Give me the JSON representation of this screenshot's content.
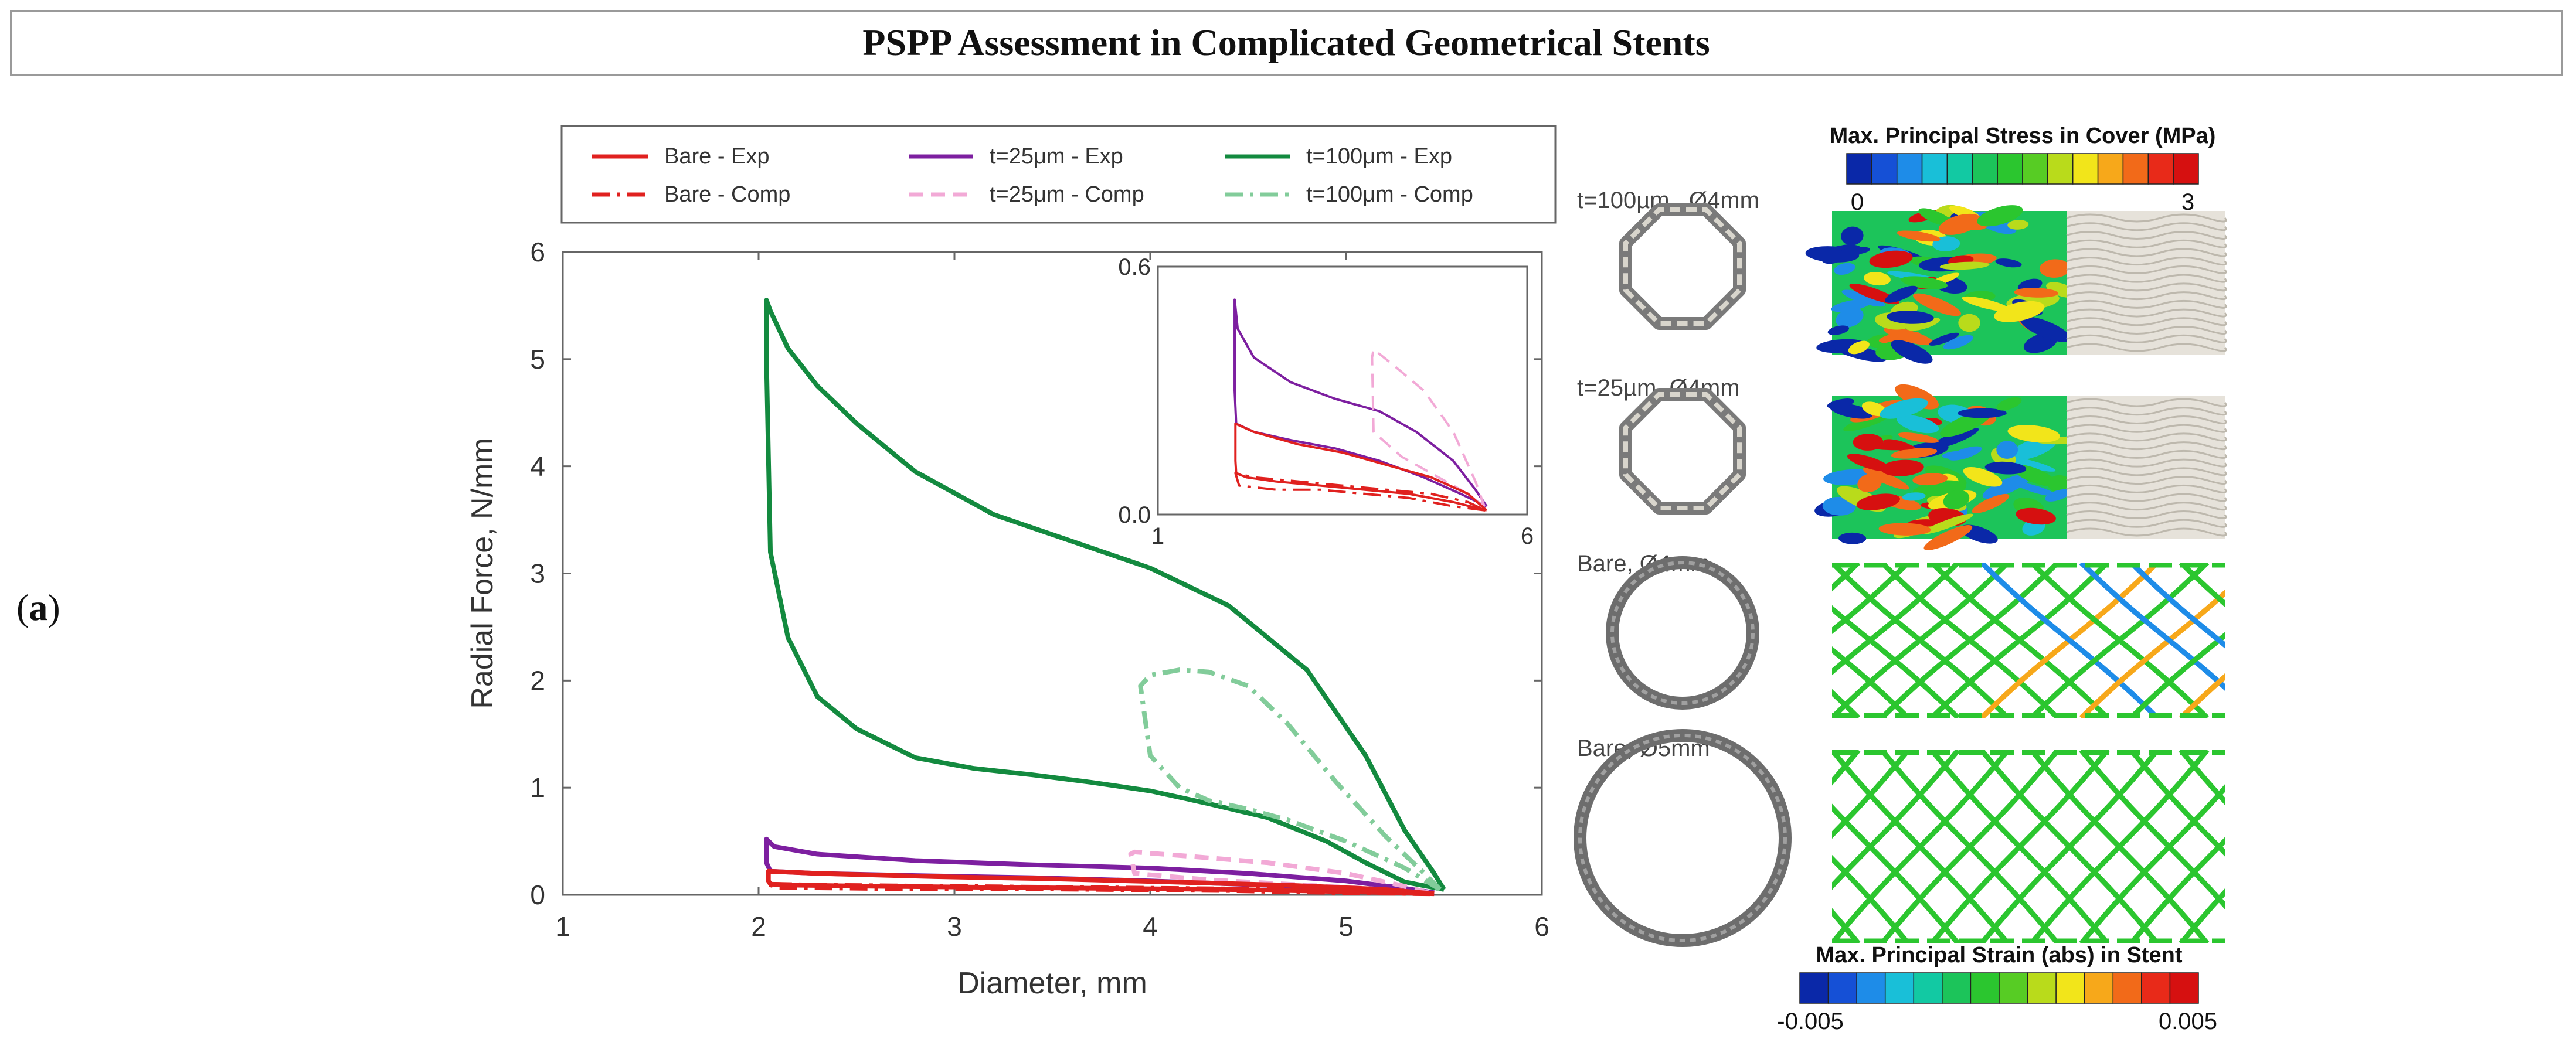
{
  "header": {
    "title": "PSPP Assessment in Complicated Geometrical Stents"
  },
  "panel": {
    "open": "(",
    "letter": "a",
    "close": ")"
  },
  "colors": {
    "bare": "#e0211f",
    "t25": "#7d1fa0",
    "t25_comp": "#f2a9d6",
    "t100": "#138a3f",
    "t100_comp": "#82cc9a",
    "stent_gray": "#7a7a7a",
    "cover": "#e6e2da"
  },
  "legend": {
    "items": [
      {
        "label": "Bare - Exp",
        "color": "#e0211f",
        "style": "solid"
      },
      {
        "label": "t=25μm - Exp",
        "color": "#7d1fa0",
        "style": "solid"
      },
      {
        "label": "t=100μm - Exp",
        "color": "#138a3f",
        "style": "solid"
      },
      {
        "label": "Bare - Comp",
        "color": "#e0211f",
        "style": "dashdot"
      },
      {
        "label": "t=25μm - Comp",
        "color": "#f2a9d6",
        "style": "dashed"
      },
      {
        "label": "t=100μm - Comp",
        "color": "#82cc9a",
        "style": "dashdot"
      }
    ]
  },
  "chart_data": {
    "type": "line",
    "xlabel": "Diameter, mm",
    "ylabel": "Radial Force, N/mm",
    "xlim": [
      1,
      6
    ],
    "ylim": [
      0,
      6
    ],
    "xticks": [
      "1",
      "2",
      "3",
      "4",
      "5",
      "6"
    ],
    "yticks": [
      "0",
      "1",
      "2",
      "3",
      "4",
      "5",
      "6"
    ],
    "series": [
      {
        "name": "t=100μm - Exp",
        "x": [
          5.5,
          5.3,
          5.1,
          4.9,
          4.6,
          4.3,
          4.0,
          3.7,
          3.4,
          3.1,
          2.8,
          2.5,
          2.3,
          2.15,
          2.06,
          2.04,
          2.04,
          2.06,
          2.15,
          2.3,
          2.5,
          2.8,
          3.2,
          3.6,
          4.0,
          4.4,
          4.8,
          5.1,
          5.3,
          5.45,
          5.5
        ],
        "y": [
          0.05,
          0.12,
          0.3,
          0.5,
          0.72,
          0.85,
          0.97,
          1.05,
          1.12,
          1.18,
          1.28,
          1.55,
          1.85,
          2.4,
          3.2,
          5.0,
          5.55,
          5.45,
          5.1,
          4.75,
          4.4,
          3.95,
          3.55,
          3.3,
          3.05,
          2.7,
          2.1,
          1.3,
          0.6,
          0.2,
          0.05
        ]
      },
      {
        "name": "t=100μm - Comp",
        "x": [
          5.48,
          5.3,
          5.0,
          4.7,
          4.5,
          4.3,
          4.15,
          4.0,
          3.95,
          4.0,
          4.15,
          4.3,
          4.5,
          4.7,
          4.95,
          5.2,
          5.4,
          5.48
        ],
        "y": [
          0.05,
          0.25,
          0.5,
          0.7,
          0.8,
          0.88,
          1.0,
          1.3,
          1.95,
          2.05,
          2.1,
          2.08,
          1.95,
          1.6,
          1.05,
          0.55,
          0.2,
          0.05
        ]
      },
      {
        "name": "t=25μm - Exp",
        "x": [
          5.45,
          5.1,
          4.6,
          4.0,
          3.4,
          2.8,
          2.3,
          2.06,
          2.04,
          2.04,
          2.08,
          2.3,
          2.8,
          3.4,
          4.0,
          4.5,
          5.0,
          5.3,
          5.45
        ],
        "y": [
          0.02,
          0.05,
          0.09,
          0.13,
          0.16,
          0.18,
          0.2,
          0.22,
          0.3,
          0.52,
          0.45,
          0.38,
          0.32,
          0.28,
          0.25,
          0.2,
          0.13,
          0.06,
          0.02
        ]
      },
      {
        "name": "t=25μm - Comp",
        "x": [
          5.42,
          5.1,
          4.7,
          4.3,
          3.92,
          3.9,
          3.92,
          4.2,
          4.6,
          5.0,
          5.3,
          5.42
        ],
        "y": [
          0.02,
          0.06,
          0.1,
          0.14,
          0.2,
          0.38,
          0.4,
          0.36,
          0.3,
          0.2,
          0.08,
          0.02
        ]
      },
      {
        "name": "Bare - Exp",
        "x": [
          5.45,
          5.0,
          4.4,
          3.8,
          3.2,
          2.6,
          2.2,
          2.06,
          2.05,
          2.05,
          2.3,
          2.9,
          3.5,
          4.1,
          4.7,
          5.2,
          5.45
        ],
        "y": [
          0.01,
          0.03,
          0.05,
          0.06,
          0.07,
          0.08,
          0.09,
          0.1,
          0.13,
          0.22,
          0.2,
          0.17,
          0.15,
          0.12,
          0.09,
          0.05,
          0.01
        ]
      },
      {
        "name": "Bare - Comp",
        "x": [
          5.43,
          5.0,
          4.4,
          3.8,
          3.2,
          2.6,
          2.1,
          2.05,
          2.3,
          2.9,
          3.5,
          4.1,
          4.7,
          5.2,
          5.43
        ],
        "y": [
          0.01,
          0.02,
          0.04,
          0.05,
          0.06,
          0.06,
          0.07,
          0.1,
          0.09,
          0.08,
          0.07,
          0.06,
          0.05,
          0.03,
          0.01
        ]
      }
    ],
    "inset": {
      "xlim": [
        1,
        6
      ],
      "ylim": [
        0,
        0.6
      ],
      "xticks": [
        "1",
        "6"
      ],
      "yticks": [
        "0.0",
        "0.6"
      ],
      "series_names": [
        "t=25μm - Exp",
        "t=25μm - Comp",
        "Bare - Exp",
        "Bare - Comp"
      ]
    }
  },
  "right_panel": {
    "stress_bar": {
      "title": "Max. Principal Stress in Cover (MPa)",
      "min": "0",
      "max": "3"
    },
    "strain_bar": {
      "title": "Max. Principal Strain (abs) in Stent",
      "min": "-0.005",
      "max": "0.005"
    },
    "colormap": [
      "#0a28a8",
      "#1550d6",
      "#1e8ce8",
      "#19bfd8",
      "#12c9a3",
      "#1cc45a",
      "#2bc62f",
      "#57cc24",
      "#b9db1b",
      "#f2e51a",
      "#f7a81a",
      "#f26a19",
      "#e82a19",
      "#d61010"
    ],
    "labels": [
      "t=100µm , Ø4mm",
      "t=25µm, Ø4mm",
      "Bare, Ø4mm",
      "Bare, Ø5mm"
    ]
  }
}
